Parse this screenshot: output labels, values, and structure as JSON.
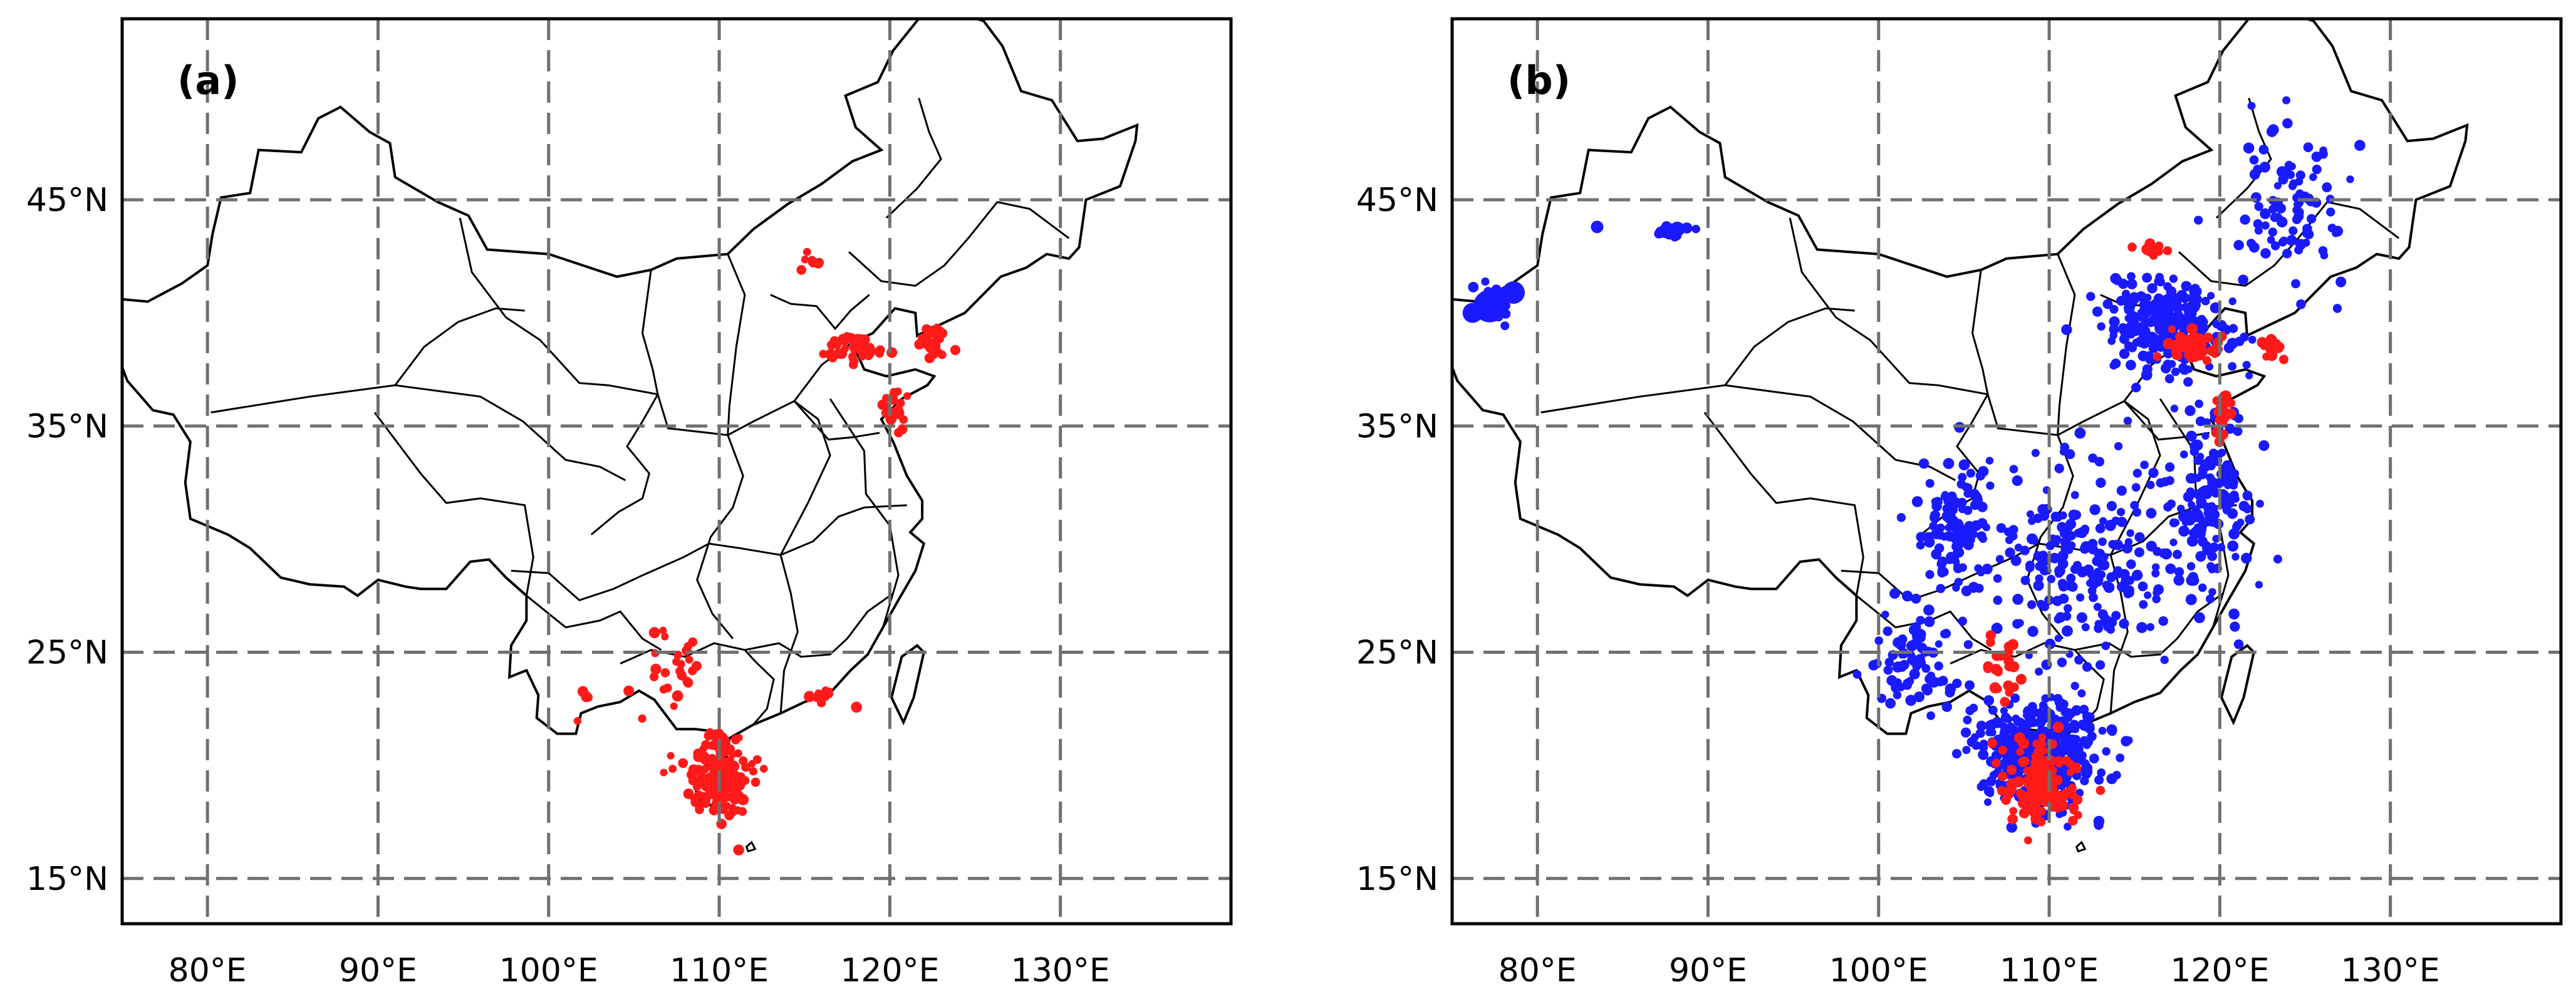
{
  "figure": {
    "panels": [
      {
        "label": "(a)",
        "lon_range": [
          75,
          140
        ],
        "lat_range": [
          13,
          53
        ],
        "x_ticks": [
          {
            "value": 80,
            "label": "80°E"
          },
          {
            "value": 90,
            "label": "90°E"
          },
          {
            "value": 100,
            "label": "100°E"
          },
          {
            "value": 110,
            "label": "110°E"
          },
          {
            "value": 120,
            "label": "120°E"
          },
          {
            "value": 130,
            "label": "130°E"
          }
        ],
        "y_ticks": [
          {
            "value": 45,
            "label": "45°N"
          },
          {
            "value": 35,
            "label": "35°N"
          },
          {
            "value": 25,
            "label": "25°N"
          },
          {
            "value": 15,
            "label": "15°N"
          }
        ],
        "grid": true,
        "marker_color": "#ff1a1a",
        "point_clusters": [
          {
            "name": "hainan",
            "center": [
              109.9,
              19.2
            ],
            "spread": [
              1.6,
              1.4
            ],
            "count": 130
          },
          {
            "name": "leizhou",
            "center": [
              110.0,
              20.8
            ],
            "spread": [
              0.8,
              0.6
            ],
            "count": 30
          },
          {
            "name": "beijing-tianjin",
            "center": [
              117.8,
              38.4
            ],
            "spread": [
              1.3,
              0.5
            ],
            "count": 45
          },
          {
            "name": "liaodong",
            "center": [
              122.7,
              38.8
            ],
            "spread": [
              0.8,
              0.6
            ],
            "count": 25
          },
          {
            "name": "shandong-coast",
            "center": [
              120.2,
              35.8
            ],
            "spread": [
              0.5,
              0.9
            ],
            "count": 25
          },
          {
            "name": "inner-mongolia",
            "center": [
              115.5,
              42.4
            ],
            "spread": [
              0.8,
              0.3
            ],
            "count": 8
          },
          {
            "name": "guangxi",
            "center": [
              107.0,
              24.5
            ],
            "spread": [
              1.5,
              1.8
            ],
            "count": 25
          },
          {
            "name": "yunnan-south",
            "center": [
              102.5,
              23.0
            ],
            "spread": [
              1.5,
              1.0
            ],
            "count": 6
          },
          {
            "name": "guangdong-coast",
            "center": [
              116.5,
              22.9
            ],
            "spread": [
              1.5,
              0.4
            ],
            "count": 10
          }
        ]
      },
      {
        "label": "(b)",
        "lon_range": [
          75,
          140
        ],
        "lat_range": [
          13,
          53
        ],
        "x_ticks": [
          {
            "value": 80,
            "label": "80°E"
          },
          {
            "value": 90,
            "label": "90°E"
          },
          {
            "value": 100,
            "label": "100°E"
          },
          {
            "value": 110,
            "label": "110°E"
          },
          {
            "value": 120,
            "label": "120°E"
          },
          {
            "value": 130,
            "label": "130°E"
          }
        ],
        "y_ticks": [
          {
            "value": 45,
            "label": "45°N"
          },
          {
            "value": 35,
            "label": "35°N"
          },
          {
            "value": 25,
            "label": "25°N"
          },
          {
            "value": 15,
            "label": "15°N"
          }
        ],
        "grid": true,
        "marker_colors": [
          "#1a1aff",
          "#ff1a1a"
        ],
        "point_clusters": [
          {
            "name": "south-china",
            "color": "#1a1aff",
            "center": [
              109.5,
              20.5
            ],
            "spread": [
              3.0,
              2.0
            ],
            "count": 420
          },
          {
            "name": "central-china",
            "color": "#1a1aff",
            "center": [
              112.0,
              29.0
            ],
            "spread": [
              6.0,
              4.0
            ],
            "count": 260
          },
          {
            "name": "sichuan",
            "color": "#1a1aff",
            "center": [
              104.5,
              30.5
            ],
            "spread": [
              1.5,
              1.8
            ],
            "count": 90
          },
          {
            "name": "north-china",
            "color": "#1a1aff",
            "center": [
              117.0,
              39.5
            ],
            "spread": [
              3.0,
              1.8
            ],
            "count": 230
          },
          {
            "name": "east-coast",
            "color": "#1a1aff",
            "center": [
              119.5,
              32.0
            ],
            "spread": [
              1.8,
              3.5
            ],
            "count": 140
          },
          {
            "name": "northeast",
            "color": "#1a1aff",
            "center": [
              124.0,
              44.5
            ],
            "spread": [
              3.0,
              3.0
            ],
            "count": 90
          },
          {
            "name": "xinjiang-west",
            "color": "#1a1aff",
            "center": [
              77.5,
              40.5
            ],
            "spread": [
              1.0,
              0.7
            ],
            "count": 40
          },
          {
            "name": "xinjiang-north",
            "color": "#1a1aff",
            "center": [
              88.0,
              43.5
            ],
            "spread": [
              0.8,
              0.3
            ],
            "count": 20
          },
          {
            "name": "yunnan",
            "color": "#1a1aff",
            "center": [
              102.0,
              24.5
            ],
            "spread": [
              2.0,
              1.8
            ],
            "count": 70
          },
          {
            "name": "hainan-red",
            "color": "#ff1a1a",
            "center": [
              109.6,
              19.3
            ],
            "spread": [
              1.8,
              1.5
            ],
            "count": 120
          },
          {
            "name": "beijing-red",
            "color": "#ff1a1a",
            "center": [
              118.5,
              38.5
            ],
            "spread": [
              1.6,
              0.5
            ],
            "count": 50
          },
          {
            "name": "shandong-red",
            "color": "#ff1a1a",
            "center": [
              120.2,
              35.5
            ],
            "spread": [
              0.5,
              0.8
            ],
            "count": 20
          },
          {
            "name": "liaodong-red",
            "color": "#ff1a1a",
            "center": [
              123.0,
              38.4
            ],
            "spread": [
              0.5,
              0.4
            ],
            "count": 15
          },
          {
            "name": "nm-red",
            "color": "#ff1a1a",
            "center": [
              115.8,
              42.8
            ],
            "spread": [
              0.9,
              0.3
            ],
            "count": 12
          },
          {
            "name": "guangxi-red",
            "color": "#ff1a1a",
            "center": [
              107.2,
              24.3
            ],
            "spread": [
              1.2,
              1.6
            ],
            "count": 25
          }
        ]
      }
    ]
  }
}
